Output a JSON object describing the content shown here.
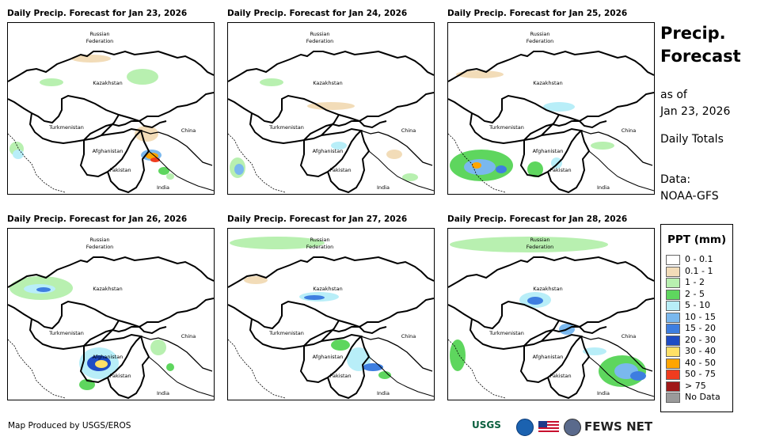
{
  "panels": [
    {
      "title": "Daily Precip. Forecast for Jan 23, 2026"
    },
    {
      "title": "Daily Precip. Forecast for Jan 24, 2026"
    },
    {
      "title": "Daily Precip. Forecast for Jan 25, 2026"
    },
    {
      "title": "Daily Precip. Forecast for Jan 26, 2026"
    },
    {
      "title": "Daily Precip. Forecast for Jan 27, 2026"
    },
    {
      "title": "Daily Precip. Forecast for Jan 28, 2026"
    }
  ],
  "map_labels": {
    "russia_line1": "Russian",
    "russia_line2": "Federation",
    "kazakhstan": "Kazakhstan",
    "turkmenistan": "Turkmenistan",
    "china": "China",
    "afghanistan": "Afghanistan",
    "pakistan": "Pakistan",
    "india": "India"
  },
  "sidebar": {
    "title_line1": "Precip.",
    "title_line2": "Forecast",
    "as_of_line1": "as of",
    "as_of_line2": "Jan 23, 2026",
    "totals": "Daily Totals",
    "data_line1": "Data:",
    "data_line2": "NOAA-GFS"
  },
  "legend": {
    "title": "PPT (mm)",
    "items": [
      {
        "label": "0 - 0.1",
        "color": "#ffffff"
      },
      {
        "label": "0.1 - 1",
        "color": "#f2dcb8"
      },
      {
        "label": "1 - 2",
        "color": "#b8f0b0"
      },
      {
        "label": "2 - 5",
        "color": "#5ed65e"
      },
      {
        "label": "5 - 10",
        "color": "#b8eef8"
      },
      {
        "label": "10 - 15",
        "color": "#7ab8ee"
      },
      {
        "label": "15 - 20",
        "color": "#3e7ee0"
      },
      {
        "label": "20 - 30",
        "color": "#1f4cc4"
      },
      {
        "label": "30 - 40",
        "color": "#ffe066"
      },
      {
        "label": "40 - 50",
        "color": "#ffa500"
      },
      {
        "label": "50 - 75",
        "color": "#f03c1e"
      },
      {
        "label": "> 75",
        "color": "#a01818"
      },
      {
        "label": "No Data",
        "color": "#9a9a9a"
      }
    ]
  },
  "footer": {
    "credit": "Map Produced by USGS/EROS"
  },
  "logos": {
    "usgs": "USGS",
    "fews": "FEWS NET"
  }
}
